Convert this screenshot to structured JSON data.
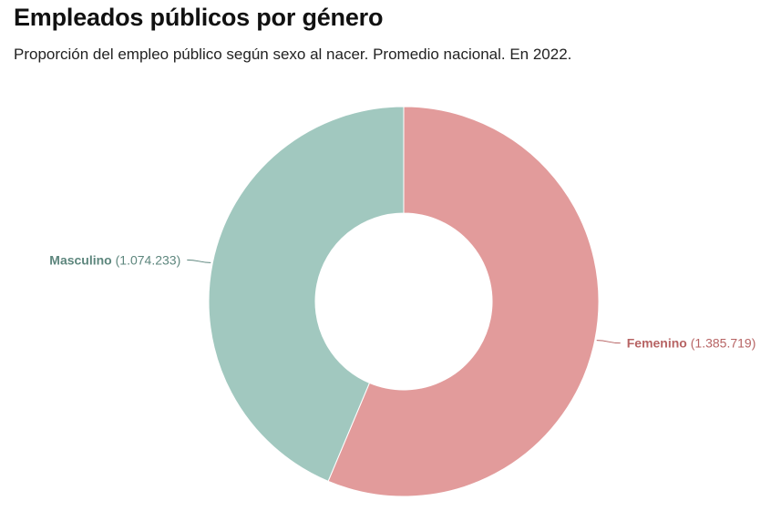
{
  "header": {
    "title": "Empleados públicos por género",
    "subtitle": "Proporción del empleo público según sexo al nacer. Promedio nacional. En 2022."
  },
  "chart_data": {
    "type": "pie",
    "variant": "donut",
    "title": "Empleados públicos por género",
    "subtitle": "Proporción del empleo público según sexo al nacer. Promedio nacional. En 2022.",
    "slices": [
      {
        "name": "Femenino",
        "value": 1385719,
        "value_label": "(1.385.719)",
        "color": "#e29b9b",
        "label_color": "#b76464"
      },
      {
        "name": "Masculino",
        "value": 1074233,
        "value_label": "(1.074.233)",
        "color": "#a1c8bf",
        "label_color": "#5d867d"
      }
    ]
  }
}
